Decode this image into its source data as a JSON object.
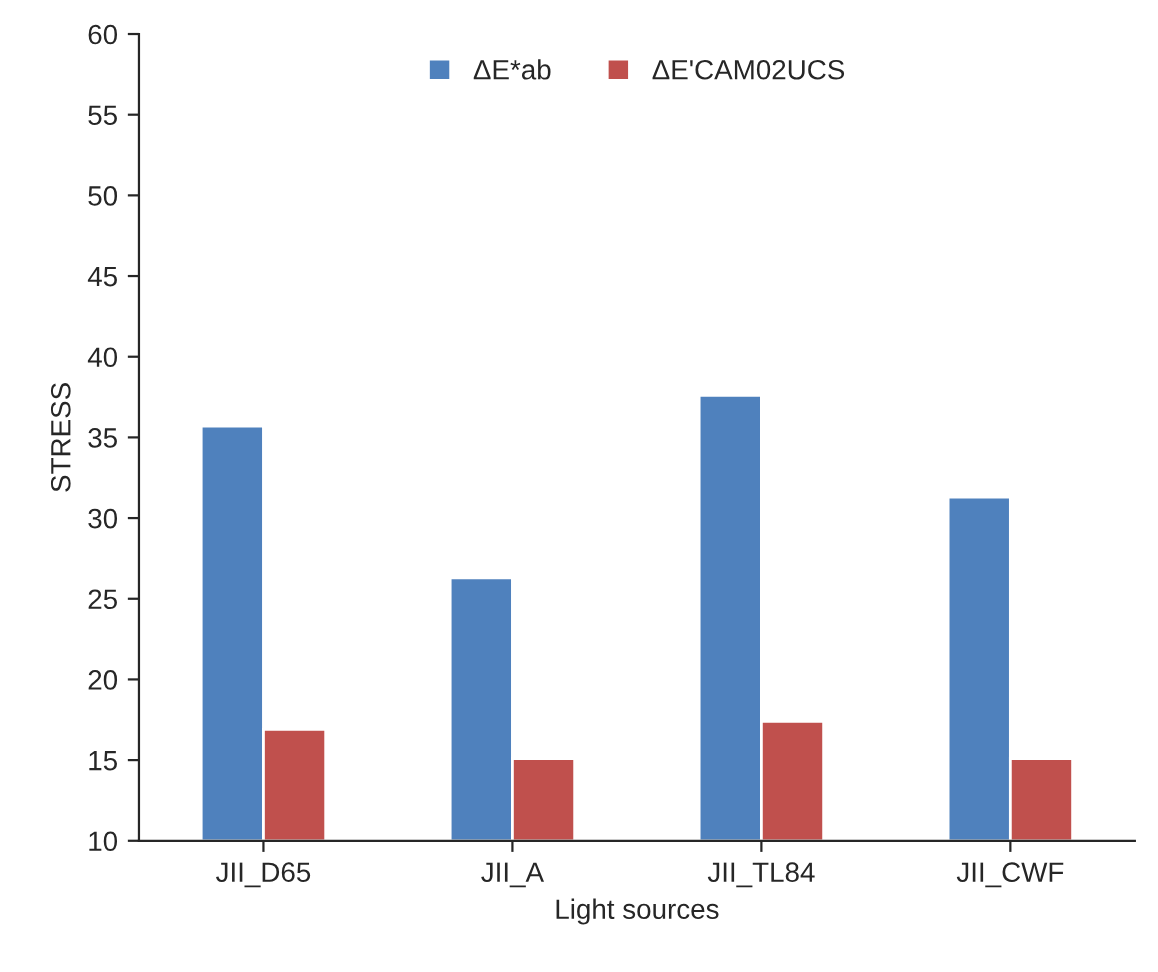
{
  "chart_data": {
    "type": "bar",
    "xlabel": "Light sources",
    "ylabel": "STRESS",
    "categories": [
      "JII_D65",
      "JII_A",
      "JII_TL84",
      "JII_CWF"
    ],
    "series": [
      {
        "name": "ΔE*ab",
        "color": "#4f81bd",
        "values": [
          35.7,
          26.3,
          37.6,
          31.3
        ]
      },
      {
        "name": "ΔE'CAM02UCS",
        "color": "#c0504d",
        "values": [
          16.9,
          15.1,
          17.4,
          15.1
        ]
      }
    ],
    "ylim": [
      10,
      60
    ],
    "yticks": [
      10,
      15,
      20,
      25,
      30,
      35,
      40,
      45,
      50,
      55,
      60
    ],
    "grid": false,
    "legend": "top"
  }
}
